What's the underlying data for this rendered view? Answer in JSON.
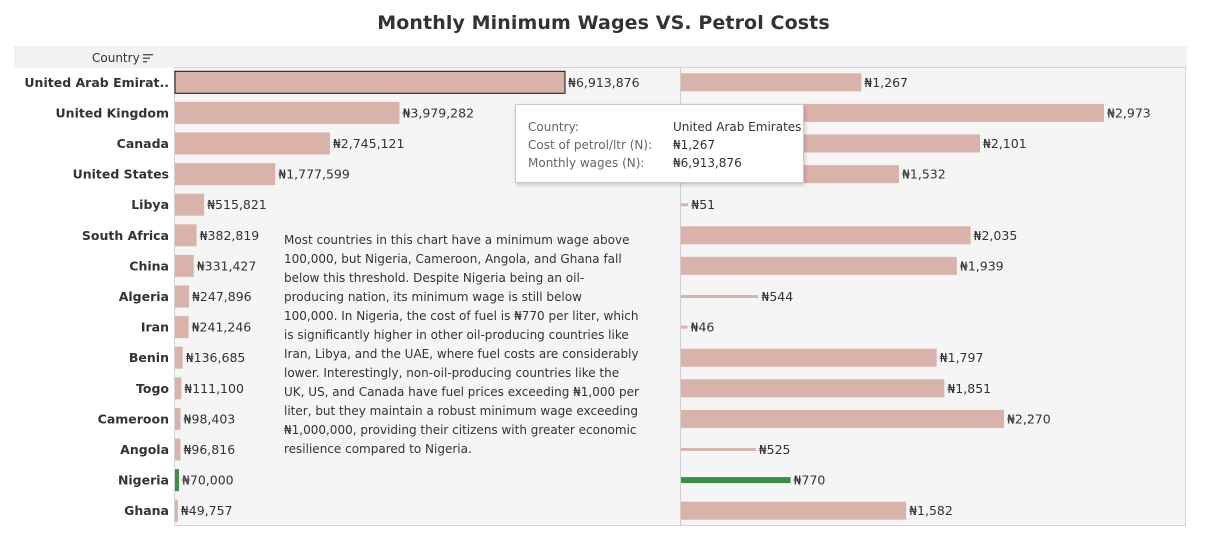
{
  "chart_data": {
    "type": "bar",
    "title": "Monthly Minimum Wages VS. Petrol Costs",
    "dimension_label": "Country",
    "currency_symbol": "₦",
    "categories": [
      "United Arab Emirat..",
      "United Kingdom",
      "Canada",
      "United States",
      "Libya",
      "South Africa",
      "China",
      "Algeria",
      "Iran",
      "Benin",
      "Togo",
      "Cameroon",
      "Angola",
      "Nigeria",
      "Ghana"
    ],
    "series": [
      {
        "values": [
          6913876,
          3979282,
          2745121,
          1777599,
          515821,
          382819,
          331427,
          247896,
          241246,
          136685,
          111100,
          98403,
          96816,
          70000,
          49757
        ]
      },
      {
        "values": [
          1267,
          2973,
          2101,
          1532,
          51,
          2035,
          1939,
          544,
          46,
          1797,
          1851,
          2270,
          525,
          770,
          1582
        ]
      }
    ],
    "wage_labels": [
      "₦6,913,876",
      "₦3,979,282",
      "₦2,745,121",
      "₦1,777,599",
      "₦515,821",
      "₦382,819",
      "₦331,427",
      "₦247,896",
      "₦241,246",
      "₦136,685",
      "₦111,100",
      "₦98,403",
      "₦96,816",
      "₦70,000",
      "₦49,757"
    ],
    "petrol_labels": [
      "₦1,267",
      "₦2,973",
      "₦2,101",
      "₦1,532",
      "₦51",
      "₦2,035",
      "₦1,939",
      "₦544",
      "₦46",
      "₦1,797",
      "₦1,851",
      "₦2,270",
      "₦525",
      "₦770",
      "₦1,582"
    ],
    "highlight_category": "Nigeria",
    "selected_category": "United Arab Emirat..",
    "colors": {
      "bar": "#d9b2aa",
      "highlight": "#3b8f47",
      "panel": "#f5f5f5",
      "header": "#f2f2f2"
    },
    "grid": false,
    "sorted": "descending by wage"
  },
  "annotation": "Most countries in this chart have a minimum wage above 100,000, but Nigeria, Cameroon, Angola, and Ghana fall below this threshold. Despite Nigeria being an oil-producing nation, its minimum wage is still below 100,000. In Nigeria, the cost of fuel is ₦770 per liter, which is significantly higher in other oil-producing countries like Iran, Libya, and the UAE, where fuel costs are considerably lower. Interestingly, non-oil-producing countries like the UK, US, and Canada have fuel prices exceeding ₦1,000 per liter, but they maintain a robust minimum wage exceeding ₦1,000,000, providing their citizens with greater economic resilience compared to Nigeria.",
  "tooltip": {
    "country_label": "Country:",
    "country_value": "United Arab Emirates",
    "petrol_label": "Cost of petrol/ltr (N):",
    "petrol_value": "₦1,267",
    "wages_label": "Monthly wages (N):",
    "wages_value": "₦6,913,876"
  }
}
